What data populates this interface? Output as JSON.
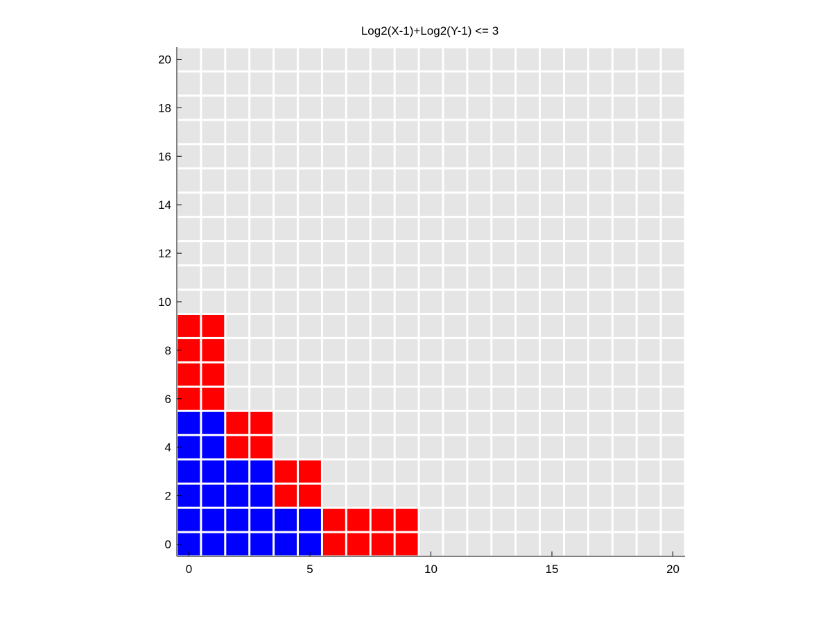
{
  "chart_data": {
    "type": "heatmap",
    "title": "Log2(X-1)+Log2(Y-1) <= 3",
    "xlabel": "",
    "ylabel": "",
    "xlim": [
      -0.5,
      20.5
    ],
    "ylim": [
      -0.5,
      20.5
    ],
    "x_ticks": [
      0,
      5,
      10,
      15,
      20
    ],
    "y_ticks": [
      0,
      2,
      4,
      6,
      8,
      10,
      12,
      14,
      16,
      18,
      20
    ],
    "grid_size": 21,
    "colors": {
      "background_cell": "#e5e5e5",
      "blue": "#0000ff",
      "red": "#ff0000",
      "cell_border": "#ffffff"
    },
    "blue_cells": [
      [
        0,
        0
      ],
      [
        1,
        0
      ],
      [
        2,
        0
      ],
      [
        3,
        0
      ],
      [
        4,
        0
      ],
      [
        5,
        0
      ],
      [
        0,
        1
      ],
      [
        1,
        1
      ],
      [
        2,
        1
      ],
      [
        3,
        1
      ],
      [
        4,
        1
      ],
      [
        5,
        1
      ],
      [
        0,
        2
      ],
      [
        1,
        2
      ],
      [
        2,
        2
      ],
      [
        3,
        2
      ],
      [
        0,
        3
      ],
      [
        1,
        3
      ],
      [
        2,
        3
      ],
      [
        3,
        3
      ],
      [
        0,
        4
      ],
      [
        1,
        4
      ],
      [
        0,
        5
      ],
      [
        1,
        5
      ]
    ],
    "red_cells": [
      [
        6,
        0
      ],
      [
        7,
        0
      ],
      [
        8,
        0
      ],
      [
        9,
        0
      ],
      [
        6,
        1
      ],
      [
        7,
        1
      ],
      [
        8,
        1
      ],
      [
        9,
        1
      ],
      [
        4,
        2
      ],
      [
        5,
        2
      ],
      [
        4,
        3
      ],
      [
        5,
        3
      ],
      [
        2,
        4
      ],
      [
        3,
        4
      ],
      [
        2,
        5
      ],
      [
        3,
        5
      ],
      [
        0,
        6
      ],
      [
        1,
        6
      ],
      [
        0,
        7
      ],
      [
        1,
        7
      ],
      [
        0,
        8
      ],
      [
        1,
        8
      ],
      [
        0,
        9
      ],
      [
        1,
        9
      ]
    ]
  }
}
